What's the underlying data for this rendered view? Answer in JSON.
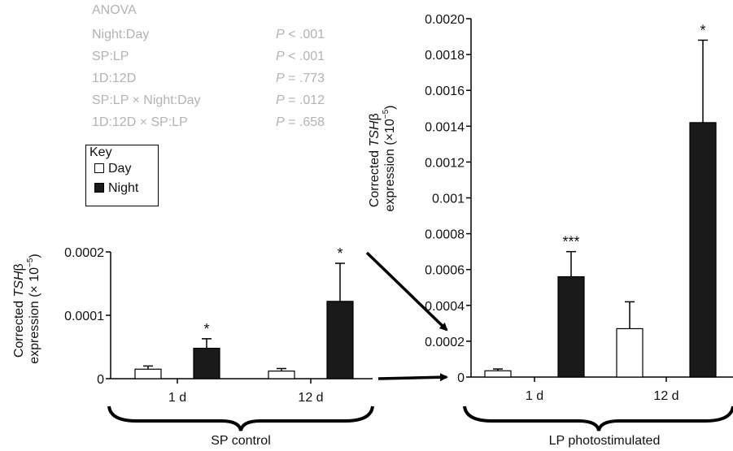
{
  "anova": {
    "title": "ANOVA",
    "rows": [
      {
        "factor": "Night:Day",
        "p_prefix": "P",
        "p_rest": " < .001"
      },
      {
        "factor": "SP:LP",
        "p_prefix": "P",
        "p_rest": " < .001"
      },
      {
        "factor": "1D:12D",
        "p_prefix": "P",
        "p_rest": " = .773"
      },
      {
        "factor": "SP:LP × Night:Day",
        "p_prefix": "P",
        "p_rest": " = .012"
      },
      {
        "factor": "1D:12D × SP:LP",
        "p_prefix": "P",
        "p_rest": " = .658"
      }
    ]
  },
  "key": {
    "title": "Key",
    "items": [
      {
        "label": "Day",
        "color": "#ffffff"
      },
      {
        "label": "Night",
        "color": "#1a1a1a"
      }
    ]
  },
  "chart_data": [
    {
      "type": "bar",
      "group_label": "SP control",
      "ylabel_parts": [
        "Corrected ",
        "TSH",
        "β",
        "expression (× 10",
        "−5",
        ")"
      ],
      "ylim": [
        0,
        0.0002
      ],
      "yticks": [
        0,
        0.0001,
        0.0002
      ],
      "ytick_labels": [
        "0",
        "0.0001",
        "0.0002"
      ],
      "categories": [
        "1 d",
        "12 d"
      ],
      "series": [
        {
          "name": "Day",
          "color": "#ffffff",
          "values": [
            1.5e-05,
            1.2e-05
          ],
          "errors": [
            5e-06,
            4e-06
          ]
        },
        {
          "name": "Night",
          "color": "#1a1a1a",
          "values": [
            4.8e-05,
            0.000122
          ],
          "errors": [
            1.5e-05,
            6e-05
          ]
        }
      ],
      "annotations": [
        {
          "category": "1 d",
          "series": "Night",
          "text": "*"
        },
        {
          "category": "12 d",
          "series": "Night",
          "text": "*"
        }
      ]
    },
    {
      "type": "bar",
      "group_label": "LP photostimulated",
      "ylabel_parts": [
        "Corrected ",
        "TSH",
        "β",
        "expression (×10",
        "−5",
        ")"
      ],
      "ylim": [
        0,
        0.002
      ],
      "yticks": [
        0,
        0.0002,
        0.0004,
        0.0006,
        0.0008,
        0.001,
        0.0012,
        0.0014,
        0.0016,
        0.0018,
        0.002
      ],
      "ytick_labels": [
        "0",
        "0.0002",
        "0.0004",
        "0.0006",
        "0.0008",
        "0.001",
        "0.0012",
        "0.0014",
        "0.0016",
        "0.0018",
        "0.0020"
      ],
      "categories": [
        "1 d",
        "12 d"
      ],
      "series": [
        {
          "name": "Day",
          "color": "#ffffff",
          "values": [
            3.5e-05,
            0.00027
          ],
          "errors": [
            1e-05,
            0.00015
          ]
        },
        {
          "name": "Night",
          "color": "#1a1a1a",
          "values": [
            0.00056,
            0.00142
          ],
          "errors": [
            0.00014,
            0.00046
          ]
        }
      ],
      "annotations": [
        {
          "category": "1 d",
          "series": "Night",
          "text": "***"
        },
        {
          "category": "12 d",
          "series": "Night",
          "text": "*"
        }
      ]
    }
  ]
}
